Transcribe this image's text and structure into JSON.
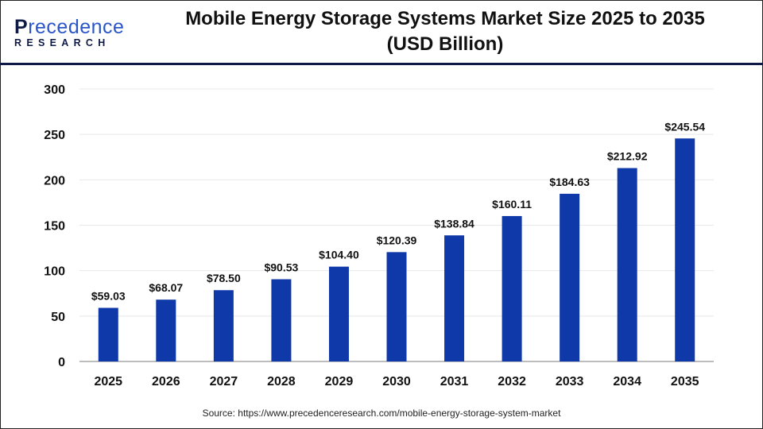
{
  "brand": {
    "logo_line1": "Precedence",
    "logo_line2": "RESEARCH"
  },
  "title_line1": "Mobile Energy Storage Systems Market Size 2025 to 2035",
  "title_line2": "(USD Billion)",
  "source": "Source: https://www.precedenceresearch.com/mobile-energy-storage-system-market",
  "colors": {
    "bar": "#0f38a8",
    "header_line": "#0f1a45",
    "grid": "#e8e8e8",
    "axis": "#bdbdbd"
  },
  "chart_data": {
    "type": "bar",
    "title": "Mobile Energy Storage Systems Market Size 2025 to 2035 (USD Billion)",
    "categories": [
      "2025",
      "2026",
      "2027",
      "2028",
      "2029",
      "2030",
      "2031",
      "2032",
      "2033",
      "2034",
      "2035"
    ],
    "values": [
      59.03,
      68.07,
      78.5,
      90.53,
      104.4,
      120.39,
      138.84,
      160.11,
      184.63,
      212.92,
      245.54
    ],
    "data_labels": [
      "$59.03",
      "$68.07",
      "$78.50",
      "$90.53",
      "$104.40",
      "$120.39",
      "$138.84",
      "$160.11",
      "$184.63",
      "$212.92",
      "$245.54"
    ],
    "yticks": [
      "0",
      "50",
      "100",
      "150",
      "200",
      "250",
      "300"
    ],
    "ylim": [
      0,
      300
    ],
    "grid": true,
    "xlabel": "",
    "ylabel": ""
  }
}
